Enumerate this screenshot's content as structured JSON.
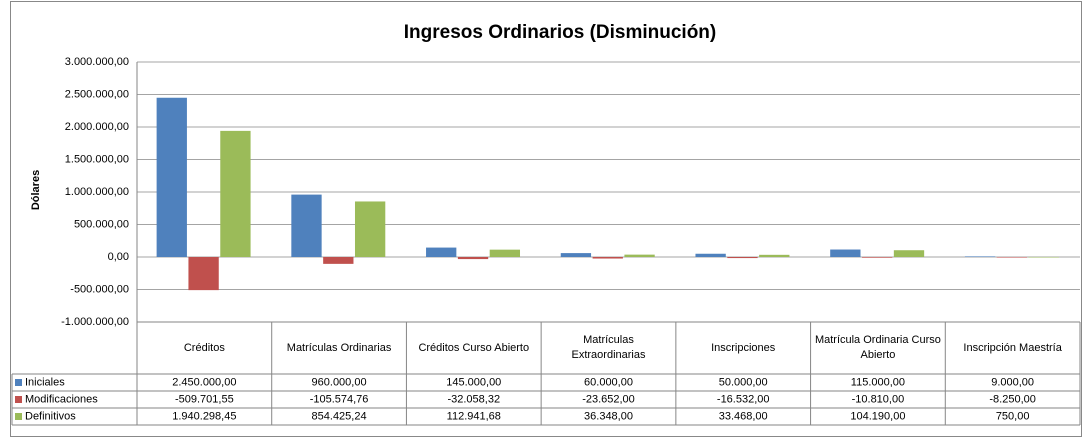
{
  "chart_data": {
    "type": "bar",
    "title": "Ingresos Ordinarios (Disminución)",
    "y_label": "Dólares",
    "categories": [
      "Créditos",
      "Matrículas Ordinarias",
      "Créditos Curso Abierto",
      "Matrículas Extraordinarias",
      "Inscripciones",
      "Matrícula Ordinaria Curso Abierto",
      "Inscripción Maestría"
    ],
    "series": [
      {
        "name": "Iniciales",
        "color": "#4f81bd",
        "values": [
          2450000,
          960000,
          145000,
          60000,
          50000,
          115000,
          9000
        ],
        "value_labels": [
          "2.450.000,00",
          "960.000,00",
          "145.000,00",
          "60.000,00",
          "50.000,00",
          "115.000,00",
          "9.000,00"
        ]
      },
      {
        "name": "Modificaciones",
        "color": "#c0504d",
        "values": [
          -509701.55,
          -105574.76,
          -32058.32,
          -23652,
          -16532,
          -10810,
          -8250
        ],
        "value_labels": [
          "-509.701,55",
          "-105.574,76",
          "-32.058,32",
          "-23.652,00",
          "-16.532,00",
          "-10.810,00",
          "-8.250,00"
        ]
      },
      {
        "name": "Definitivos",
        "color": "#9bbb59",
        "values": [
          1940298.45,
          854425.24,
          112941.68,
          36348,
          33468,
          104190,
          750
        ],
        "value_labels": [
          "1.940.298,45",
          "854.425,24",
          "112.941,68",
          "36.348,00",
          "33.468,00",
          "104.190,00",
          "750,00"
        ]
      }
    ],
    "ylim": [
      -1000000,
      3000000
    ],
    "yticks": [
      {
        "value": -1000000,
        "label": "-1.000.000,00"
      },
      {
        "value": -500000,
        "label": "-500.000,00"
      },
      {
        "value": 0,
        "label": "0,00"
      },
      {
        "value": 500000,
        "label": "500.000,00"
      },
      {
        "value": 1000000,
        "label": "1.000.000,00"
      },
      {
        "value": 1500000,
        "label": "1.500.000,00"
      },
      {
        "value": 2000000,
        "label": "2.000.000,00"
      },
      {
        "value": 2500000,
        "label": "2.500.000,00"
      },
      {
        "value": 3000000,
        "label": "3.000.000,00"
      }
    ],
    "grid": true
  }
}
